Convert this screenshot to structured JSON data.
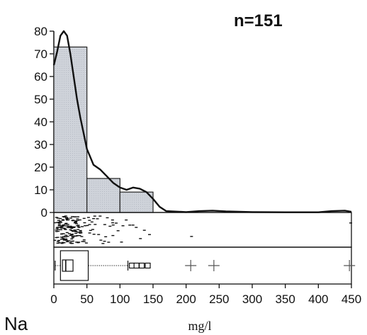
{
  "chart_data": {
    "type": "bar",
    "element_label": "Na",
    "n_label": "n=151",
    "xlabel": "mg/l",
    "ylabel": "",
    "xlim": [
      0,
      450
    ],
    "ylim": [
      0,
      80
    ],
    "x_ticks": [
      0,
      50,
      100,
      150,
      200,
      250,
      300,
      350,
      400,
      450
    ],
    "y_ticks": [
      0,
      10,
      20,
      30,
      40,
      50,
      60,
      70,
      80
    ],
    "histogram": {
      "bins": [
        {
          "x0": 0,
          "x1": 50,
          "value": 73
        },
        {
          "x0": 50,
          "x1": 100,
          "value": 15
        },
        {
          "x0": 100,
          "x1": 150,
          "value": 9
        }
      ]
    },
    "density_curve": {
      "x": [
        0,
        5,
        10,
        15,
        20,
        25,
        30,
        35,
        40,
        50,
        60,
        70,
        80,
        90,
        100,
        110,
        120,
        130,
        140,
        150,
        160,
        170,
        200,
        220,
        240,
        260,
        300,
        350,
        400,
        420,
        440,
        450
      ],
      "y": [
        65,
        71,
        78,
        80,
        78,
        70,
        60,
        50,
        42,
        28,
        21,
        19,
        16,
        13,
        11,
        10,
        11,
        10.5,
        9,
        6,
        2.5,
        0.6,
        0.2,
        0.6,
        0.8,
        0.5,
        0.2,
        0.1,
        0.1,
        0.6,
        0.8,
        0.3
      ]
    },
    "dotplot_values": [
      2,
      3,
      4,
      5,
      6,
      7,
      8,
      9,
      10,
      11,
      12,
      13,
      14,
      15,
      16,
      17,
      18,
      19,
      20,
      21,
      22,
      23,
      24,
      25,
      26,
      27,
      28,
      29,
      30,
      31,
      32,
      33,
      34,
      35,
      36,
      38,
      40,
      42,
      44,
      46,
      48,
      50,
      52,
      55,
      58,
      60,
      63,
      66,
      70,
      74,
      78,
      82,
      86,
      90,
      95,
      100,
      105,
      110,
      115,
      120,
      125,
      130,
      135,
      140,
      207,
      447
    ],
    "boxplot": {
      "whisker_low": 2,
      "q1": 10,
      "median": 18,
      "q3": 52,
      "whisker_high": 112,
      "inner_box": [
        13,
        29
      ],
      "outliers": [
        118,
        125,
        133,
        142
      ],
      "extremes": [
        207,
        242,
        447
      ]
    },
    "grid": false,
    "legend": "none"
  }
}
